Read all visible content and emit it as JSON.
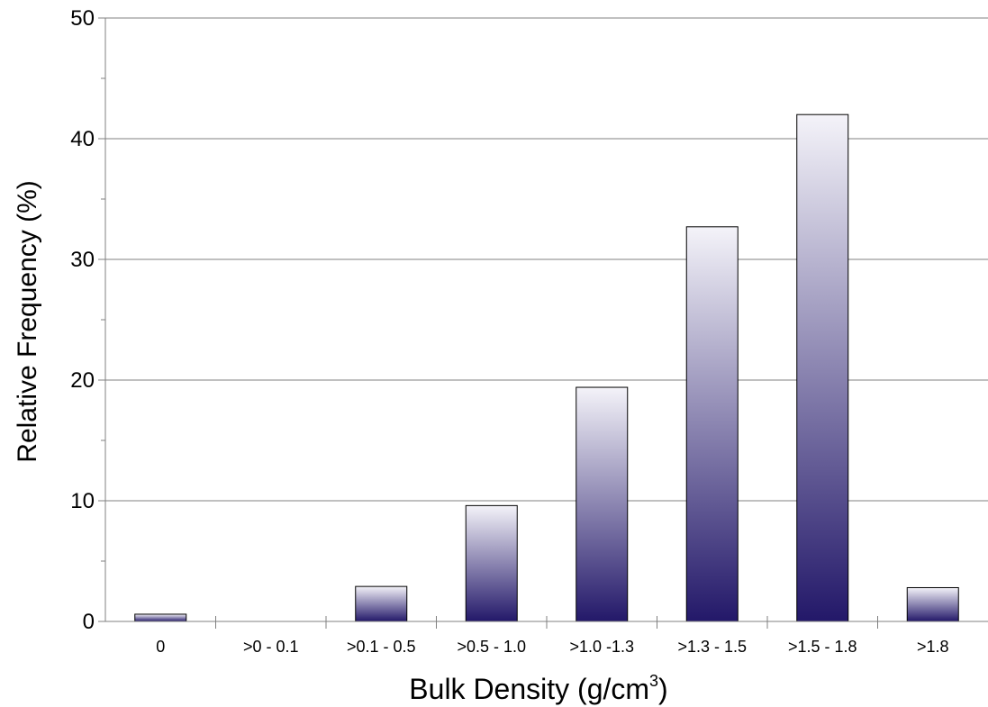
{
  "chart_data": {
    "type": "bar",
    "categories": [
      "0",
      ">0 - 0.1",
      ">0.1 - 0.5",
      ">0.5 - 1.0",
      ">1.0 -1.3",
      ">1.3 - 1.5",
      ">1.5 - 1.8",
      ">1.8"
    ],
    "values": [
      0.6,
      0.0,
      2.9,
      9.6,
      19.4,
      32.7,
      42.0,
      2.8
    ],
    "xlabel": "Bulk Density (g/cm",
    "xlabel_superscript": "3",
    "xlabel_suffix": ")",
    "ylabel": "Relative Frequency (%)",
    "ylim": [
      0,
      50
    ],
    "yticks": [
      "0",
      "10",
      "20",
      "30",
      "40",
      "50"
    ],
    "grid": true,
    "bar_color_top": "#f4f3f9",
    "bar_color_bottom": "#231869"
  }
}
